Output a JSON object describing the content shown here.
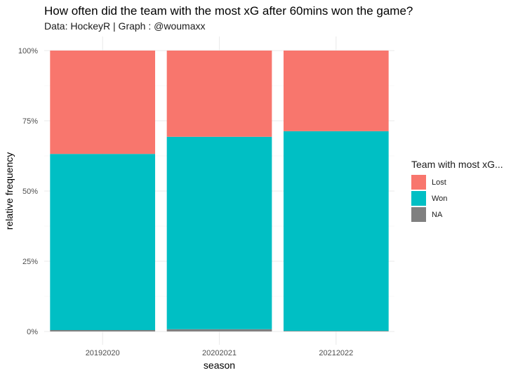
{
  "header": {
    "title": "How often did the team with the most xG after 60mins won the game?",
    "subtitle": "Data: HockeyR | Graph : @woumaxx"
  },
  "chart_data": {
    "type": "bar",
    "stacked": true,
    "title": "How often did the team with the most xG after 60mins won the game?",
    "subtitle": "Data: HockeyR | Graph : @woumaxx",
    "xlabel": "season",
    "ylabel": "relative frequency",
    "categories": [
      "20192020",
      "20202021",
      "20212022"
    ],
    "series": [
      {
        "name": "NA",
        "values": [
          0.005,
          0.008,
          0.002
        ],
        "color": "#808080"
      },
      {
        "name": "Won",
        "values": [
          0.627,
          0.685,
          0.711
        ],
        "color": "#00BFC4"
      },
      {
        "name": "Lost",
        "values": [
          0.368,
          0.307,
          0.287
        ],
        "color": "#F8766D"
      }
    ],
    "ylim": [
      0,
      1
    ],
    "yticks": [
      0,
      0.25,
      0.5,
      0.75,
      1
    ],
    "ytick_labels": [
      "0%",
      "25%",
      "50%",
      "75%",
      "100%"
    ],
    "grid": true,
    "legend": {
      "title": "Team with most xG...",
      "placement": "right",
      "items": [
        {
          "label": "Lost",
          "color": "#F8766D"
        },
        {
          "label": "Won",
          "color": "#00BFC4"
        },
        {
          "label": "NA",
          "color": "#808080"
        }
      ]
    }
  }
}
